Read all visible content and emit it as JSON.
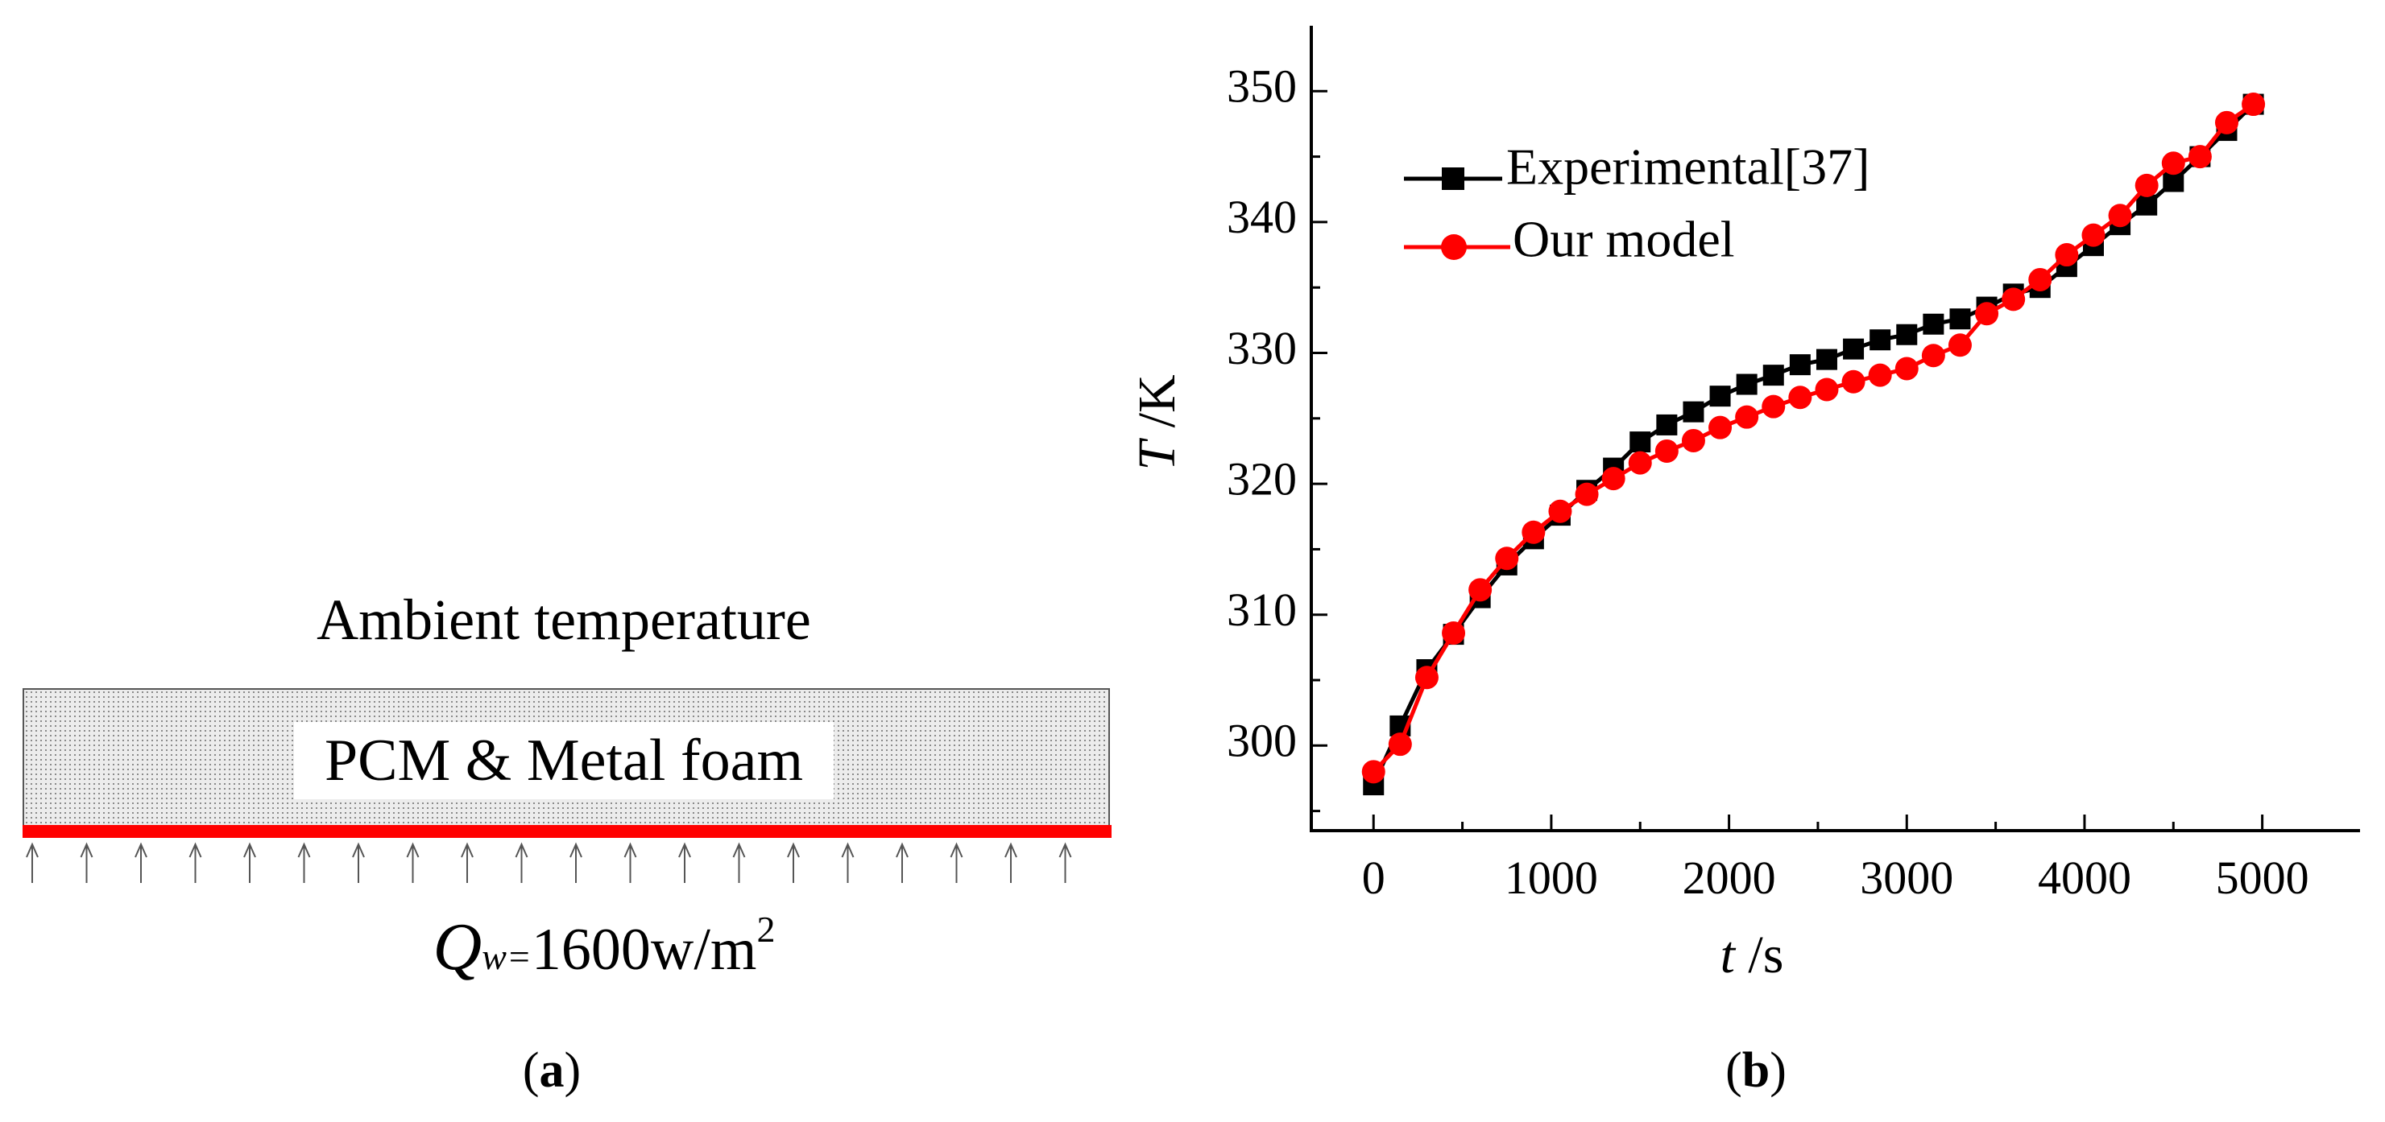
{
  "panel_a": {
    "ambient_label": "Ambient temperature",
    "block_label": "PCM & Metal foam",
    "flux_symbol": "Q",
    "flux_subscript": "w=",
    "flux_value": "1600w/m",
    "flux_exponent": "2",
    "arrow_count": 20,
    "heater_color": "#ff0000",
    "panel_open": "(",
    "panel_letter": "a",
    "panel_close": ")"
  },
  "panel_b": {
    "panel_open": "(",
    "panel_letter": "b",
    "panel_close": ")"
  },
  "chart_data": {
    "type": "line",
    "title": "",
    "xlabel_var": "t",
    "xlabel_unit": " /s",
    "ylabel_var": "T",
    "ylabel_unit": " /K",
    "xlim": [
      -350,
      5550
    ],
    "ylim": [
      293.5,
      355
    ],
    "xticks": [
      0,
      1000,
      2000,
      3000,
      4000,
      5000
    ],
    "yticks": [
      300,
      310,
      320,
      330,
      340,
      350
    ],
    "legend_position": "top-left",
    "series": [
      {
        "name": "Experimental[37]",
        "color": "#000000",
        "marker": "square",
        "x": [
          0,
          150,
          300,
          450,
          600,
          750,
          900,
          1050,
          1200,
          1350,
          1500,
          1650,
          1800,
          1950,
          2100,
          2250,
          2400,
          2550,
          2700,
          2850,
          3000,
          3150,
          3300,
          3450,
          3600,
          3750,
          3900,
          4050,
          4200,
          4350,
          4500,
          4650,
          4800,
          4950
        ],
        "values": [
          297.0,
          301.5,
          305.8,
          308.5,
          311.3,
          313.8,
          315.8,
          317.6,
          319.5,
          321.2,
          323.2,
          324.5,
          325.5,
          326.7,
          327.6,
          328.3,
          329.1,
          329.5,
          330.3,
          331.0,
          331.4,
          332.2,
          332.6,
          333.5,
          334.5,
          335.0,
          336.6,
          338.2,
          339.8,
          341.3,
          343.1,
          345.0,
          347.0,
          349.0
        ]
      },
      {
        "name": "Our model",
        "color": "#ff0000",
        "marker": "circle",
        "x": [
          0,
          150,
          300,
          450,
          600,
          750,
          900,
          1050,
          1200,
          1350,
          1500,
          1650,
          1800,
          1950,
          2100,
          2250,
          2400,
          2550,
          2700,
          2850,
          3000,
          3150,
          3300,
          3450,
          3600,
          3750,
          3900,
          4050,
          4200,
          4350,
          4500,
          4650,
          4800,
          4950
        ],
        "values": [
          298.0,
          300.1,
          305.2,
          308.6,
          311.9,
          314.3,
          316.3,
          317.9,
          319.2,
          320.4,
          321.6,
          322.5,
          323.3,
          324.3,
          325.1,
          325.9,
          326.6,
          327.2,
          327.8,
          328.3,
          328.8,
          329.8,
          330.6,
          333.0,
          334.1,
          335.6,
          337.5,
          339.0,
          340.5,
          342.8,
          344.5,
          345.0,
          347.6,
          349.0
        ]
      }
    ]
  }
}
